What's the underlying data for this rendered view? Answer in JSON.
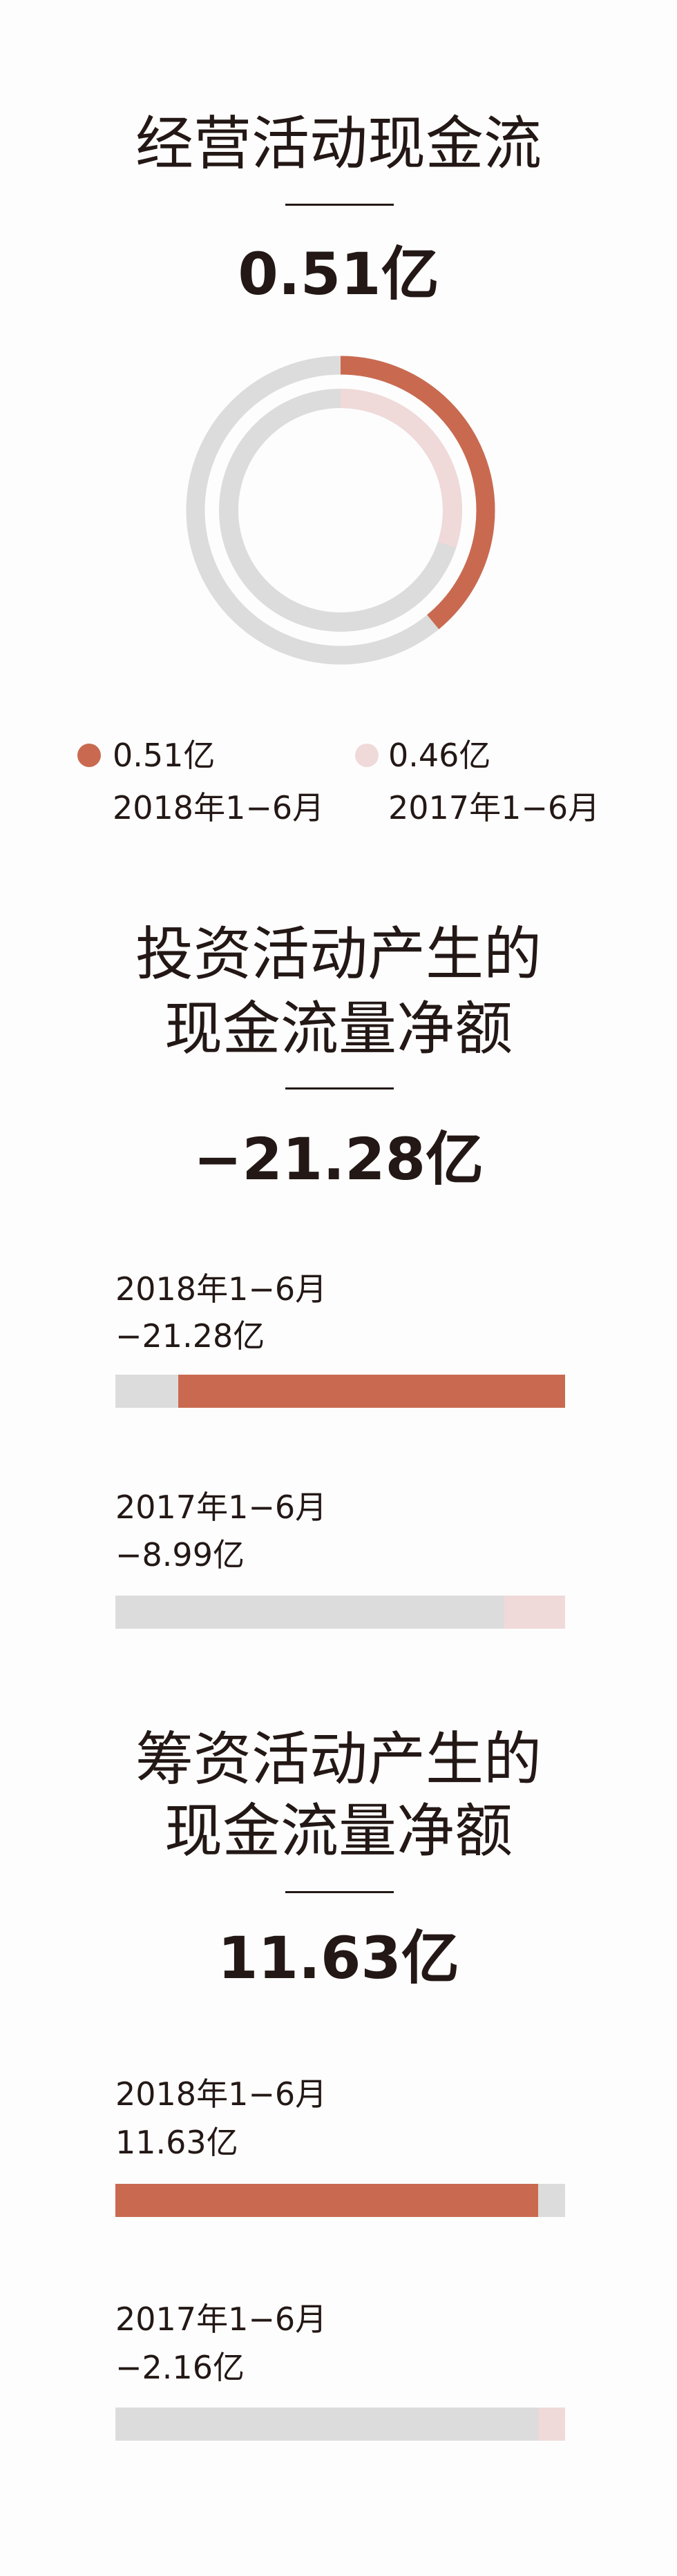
{
  "colors": {
    "current": "#c96a50",
    "previous": "#f0d9d9",
    "track": "#dddcdc",
    "text": "#231815"
  },
  "chart_data": [
    {
      "type": "donut",
      "title": "经营活动现金流",
      "headline": "0.51亿",
      "series": [
        {
          "label": "0.51亿",
          "period": "2018年1−6月",
          "value": 0.51,
          "ring": "outer",
          "color": "#c96a50",
          "fill_fraction": 0.39
        },
        {
          "label": "0.46亿",
          "period": "2017年1−6月",
          "value": 0.46,
          "ring": "inner",
          "color": "#f0d9d9",
          "fill_fraction": 0.3
        }
      ]
    },
    {
      "type": "bar",
      "title": [
        "投资活动产生的",
        "现金流量净额"
      ],
      "headline": "−21.28亿",
      "bars": [
        {
          "period": "2018年1−6月",
          "label": "−21.28亿",
          "value": -21.28,
          "color": "#c96a50",
          "fill_fraction": 0.86,
          "anchor": "right"
        },
        {
          "period": "2017年1−6月",
          "label": "−8.99亿",
          "value": -8.99,
          "color": "#f0d9d9",
          "fill_fraction": 0.135,
          "anchor": "right"
        }
      ]
    },
    {
      "type": "bar",
      "title": [
        "筹资活动产生的",
        "现金流量净额"
      ],
      "headline": "11.63亿",
      "bars": [
        {
          "period": "2018年1−6月",
          "label": "11.63亿",
          "value": 11.63,
          "color": "#c96a50",
          "fill_fraction": 0.94,
          "anchor": "left"
        },
        {
          "period": "2017年1−6月",
          "label": "−2.16亿",
          "value": -2.16,
          "color": "#f0d9d9",
          "fill_fraction": 0.06,
          "anchor": "right"
        }
      ]
    }
  ]
}
